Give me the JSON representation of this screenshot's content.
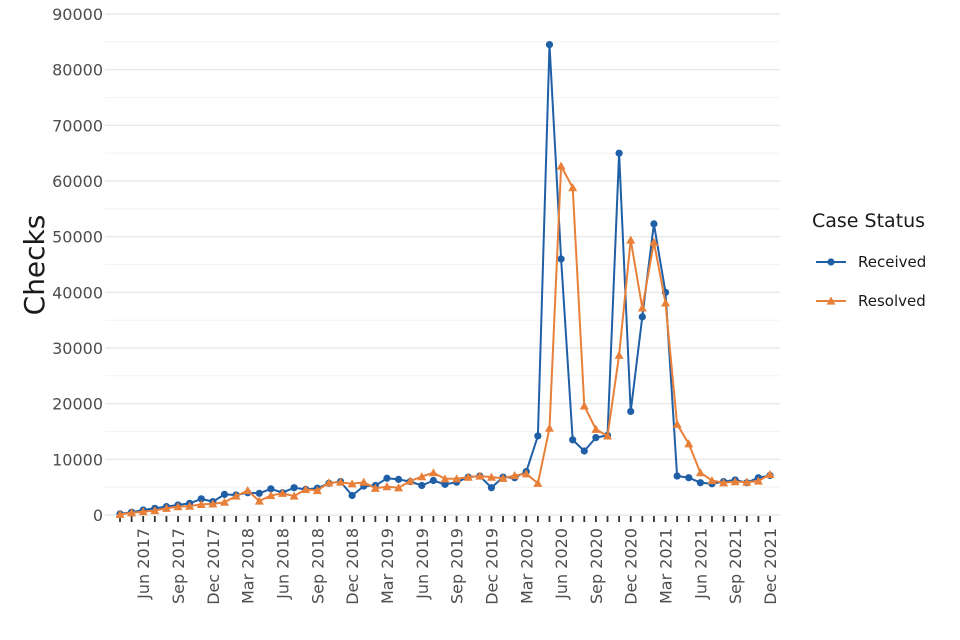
{
  "chart_data": {
    "type": "line",
    "ylabel": "Checks",
    "xlabel": "",
    "ylim": [
      0,
      90000
    ],
    "yticks": [
      0,
      10000,
      20000,
      30000,
      40000,
      50000,
      60000,
      70000,
      80000,
      90000
    ],
    "y_tick_labels": [
      "0",
      "10000",
      "20000",
      "30000",
      "40000",
      "50000",
      "60000",
      "70000",
      "80000",
      "90000"
    ],
    "grid": true,
    "legend": {
      "title": "Case Status",
      "position": "right"
    },
    "x": [
      "Apr 2017",
      "May 2017",
      "Jun 2017",
      "Jul 2017",
      "Aug 2017",
      "Sep 2017",
      "Oct 2017",
      "Nov 2017",
      "Dec 2017",
      "Jan 2018",
      "Feb 2018",
      "Mar 2018",
      "Apr 2018",
      "May 2018",
      "Jun 2018",
      "Jul 2018",
      "Aug 2018",
      "Sep 2018",
      "Oct 2018",
      "Nov 2018",
      "Dec 2018",
      "Jan 2019",
      "Feb 2019",
      "Mar 2019",
      "Apr 2019",
      "May 2019",
      "Jun 2019",
      "Jul 2019",
      "Aug 2019",
      "Sep 2019",
      "Oct 2019",
      "Nov 2019",
      "Dec 2019",
      "Jan 2020",
      "Feb 2020",
      "Mar 2020",
      "Apr 2020",
      "May 2020",
      "Jun 2020",
      "Jul 2020",
      "Aug 2020",
      "Sep 2020",
      "Oct 2020",
      "Nov 2020",
      "Dec 2020",
      "Jan 2021",
      "Feb 2021",
      "Mar 2021",
      "Apr 2021",
      "May 2021",
      "Jun 2021",
      "Jul 2021",
      "Aug 2021",
      "Sep 2021",
      "Oct 2021",
      "Nov 2021",
      "Dec 2021"
    ],
    "x_tick_labels": [
      "Jun 2017",
      "Sep 2017",
      "Dec 2017",
      "Mar 2018",
      "Jun 2018",
      "Sep 2018",
      "Dec 2018",
      "Mar 2019",
      "Jun 2019",
      "Sep 2019",
      "Dec 2019",
      "Mar 2020",
      "Jun 2020",
      "Sep 2020",
      "Dec 2020",
      "Mar 2021",
      "Jun 2021",
      "Sep 2021",
      "Dec 2021"
    ],
    "series": [
      {
        "name": "Received",
        "color": "#1f5fa6",
        "marker": "circle",
        "values": [
          200,
          500,
          900,
          1200,
          1500,
          1800,
          2100,
          2900,
          2400,
          3700,
          3600,
          4000,
          3900,
          4700,
          4000,
          4900,
          4600,
          4800,
          5700,
          6000,
          3500,
          5200,
          5300,
          6600,
          6400,
          6000,
          5300,
          6200,
          5500,
          5900,
          6800,
          7000,
          4900,
          6800,
          6700,
          7800,
          14200,
          84500,
          46000,
          13500,
          11500,
          13900,
          14300,
          65000,
          18600,
          35600,
          52300,
          40000,
          7000,
          6700,
          5800,
          5600,
          6000,
          6300,
          5800,
          6700,
          7100
        ]
      },
      {
        "name": "Resolved",
        "color": "#e8803a",
        "marker": "triangle",
        "values": [
          100,
          400,
          600,
          800,
          1200,
          1500,
          1600,
          1900,
          2000,
          2300,
          3400,
          4400,
          2500,
          3500,
          3900,
          3400,
          4600,
          4400,
          5800,
          5900,
          5600,
          5900,
          4800,
          5100,
          4900,
          6100,
          6900,
          7600,
          6500,
          6500,
          6800,
          7000,
          6800,
          6600,
          7100,
          7400,
          5700,
          15600,
          62700,
          58800,
          19600,
          15400,
          14200,
          28700,
          49400,
          37200,
          49000,
          38100,
          16300,
          12800,
          7600,
          6200,
          5800,
          6000,
          5900,
          6100,
          7300
        ]
      }
    ]
  }
}
